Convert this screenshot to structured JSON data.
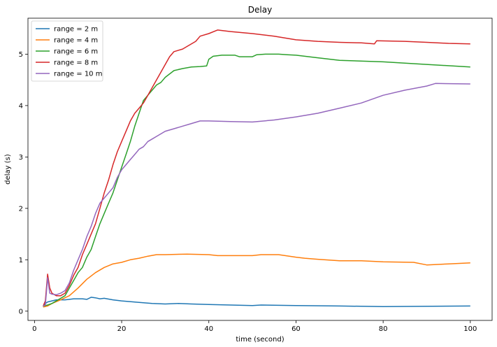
{
  "chart_data": {
    "type": "line",
    "title": "Delay",
    "xlabel": "time (second)",
    "ylabel": "delay (s)",
    "xlim": [
      -1.5,
      105
    ],
    "ylim": [
      -0.18,
      5.7
    ],
    "xticks": [
      0,
      20,
      40,
      60,
      80,
      100
    ],
    "yticks": [
      0,
      1,
      2,
      3,
      4,
      5
    ],
    "grid": false,
    "legend_position": "top-left",
    "series": [
      {
        "name": "range = 2 m",
        "color": "#1f77b4",
        "points": [
          [
            2,
            0.08
          ],
          [
            2.5,
            0.15
          ],
          [
            3,
            0.18
          ],
          [
            4,
            0.2
          ],
          [
            5,
            0.22
          ],
          [
            7,
            0.22
          ],
          [
            9,
            0.24
          ],
          [
            11,
            0.24
          ],
          [
            12,
            0.23
          ],
          [
            13,
            0.27
          ],
          [
            14,
            0.26
          ],
          [
            15,
            0.24
          ],
          [
            16,
            0.25
          ],
          [
            18,
            0.22
          ],
          [
            20,
            0.2
          ],
          [
            24,
            0.17
          ],
          [
            27,
            0.15
          ],
          [
            30,
            0.14
          ],
          [
            33,
            0.15
          ],
          [
            36,
            0.14
          ],
          [
            40,
            0.13
          ],
          [
            50,
            0.11
          ],
          [
            52,
            0.12
          ],
          [
            60,
            0.11
          ],
          [
            70,
            0.1
          ],
          [
            80,
            0.09
          ],
          [
            100,
            0.1
          ]
        ]
      },
      {
        "name": "range = 4 m",
        "color": "#ff7f0e",
        "points": [
          [
            2,
            0.08
          ],
          [
            3,
            0.1
          ],
          [
            4,
            0.15
          ],
          [
            6,
            0.22
          ],
          [
            8,
            0.3
          ],
          [
            10,
            0.45
          ],
          [
            12,
            0.62
          ],
          [
            14,
            0.75
          ],
          [
            16,
            0.85
          ],
          [
            18,
            0.92
          ],
          [
            20,
            0.95
          ],
          [
            22,
            1.0
          ],
          [
            24,
            1.03
          ],
          [
            26,
            1.07
          ],
          [
            28,
            1.1
          ],
          [
            30,
            1.1
          ],
          [
            35,
            1.11
          ],
          [
            40,
            1.1
          ],
          [
            42,
            1.08
          ],
          [
            47,
            1.08
          ],
          [
            50,
            1.08
          ],
          [
            52,
            1.1
          ],
          [
            56,
            1.1
          ],
          [
            60,
            1.05
          ],
          [
            62,
            1.03
          ],
          [
            65,
            1.01
          ],
          [
            70,
            0.98
          ],
          [
            75,
            0.98
          ],
          [
            80,
            0.96
          ],
          [
            87,
            0.95
          ],
          [
            90,
            0.9
          ],
          [
            95,
            0.92
          ],
          [
            100,
            0.94
          ]
        ]
      },
      {
        "name": "range = 6 m",
        "color": "#2ca02c",
        "points": [
          [
            2,
            0.1
          ],
          [
            3,
            0.12
          ],
          [
            4,
            0.15
          ],
          [
            5,
            0.2
          ],
          [
            6,
            0.25
          ],
          [
            7,
            0.3
          ],
          [
            8,
            0.45
          ],
          [
            9,
            0.6
          ],
          [
            10,
            0.75
          ],
          [
            11,
            0.85
          ],
          [
            12,
            1.05
          ],
          [
            13,
            1.2
          ],
          [
            14,
            1.45
          ],
          [
            15,
            1.7
          ],
          [
            16,
            1.9
          ],
          [
            17,
            2.1
          ],
          [
            18,
            2.3
          ],
          [
            19,
            2.55
          ],
          [
            20,
            2.8
          ],
          [
            21,
            3.05
          ],
          [
            22,
            3.3
          ],
          [
            23,
            3.6
          ],
          [
            24,
            3.85
          ],
          [
            25,
            4.1
          ],
          [
            26,
            4.2
          ],
          [
            27,
            4.3
          ],
          [
            28,
            4.4
          ],
          [
            29,
            4.45
          ],
          [
            30,
            4.55
          ],
          [
            32,
            4.68
          ],
          [
            34,
            4.72
          ],
          [
            36,
            4.75
          ],
          [
            38,
            4.76
          ],
          [
            39.5,
            4.77
          ],
          [
            40,
            4.9
          ],
          [
            41,
            4.96
          ],
          [
            43,
            4.98
          ],
          [
            46,
            4.98
          ],
          [
            47,
            4.95
          ],
          [
            50,
            4.95
          ],
          [
            51,
            4.99
          ],
          [
            53,
            5.0
          ],
          [
            56,
            5.0
          ],
          [
            58,
            4.99
          ],
          [
            60,
            4.98
          ],
          [
            65,
            4.93
          ],
          [
            70,
            4.88
          ],
          [
            80,
            4.85
          ],
          [
            90,
            4.8
          ],
          [
            100,
            4.75
          ]
        ]
      },
      {
        "name": "range = 8 m",
        "color": "#d62728",
        "points": [
          [
            2,
            0.1
          ],
          [
            2.5,
            0.2
          ],
          [
            3,
            0.72
          ],
          [
            3.5,
            0.45
          ],
          [
            4,
            0.35
          ],
          [
            5,
            0.3
          ],
          [
            6,
            0.3
          ],
          [
            7,
            0.35
          ],
          [
            8,
            0.5
          ],
          [
            9,
            0.7
          ],
          [
            10,
            0.85
          ],
          [
            11,
            1.1
          ],
          [
            12,
            1.3
          ],
          [
            13,
            1.5
          ],
          [
            14,
            1.7
          ],
          [
            15,
            2.0
          ],
          [
            16,
            2.3
          ],
          [
            17,
            2.55
          ],
          [
            18,
            2.85
          ],
          [
            19,
            3.1
          ],
          [
            20,
            3.3
          ],
          [
            21,
            3.5
          ],
          [
            22,
            3.7
          ],
          [
            23,
            3.85
          ],
          [
            24,
            3.95
          ],
          [
            25,
            4.05
          ],
          [
            26,
            4.2
          ],
          [
            27,
            4.35
          ],
          [
            28,
            4.5
          ],
          [
            29,
            4.65
          ],
          [
            30,
            4.8
          ],
          [
            31,
            4.95
          ],
          [
            32,
            5.05
          ],
          [
            34,
            5.1
          ],
          [
            35,
            5.15
          ],
          [
            37,
            5.25
          ],
          [
            38,
            5.35
          ],
          [
            40,
            5.4
          ],
          [
            42,
            5.47
          ],
          [
            45,
            5.44
          ],
          [
            50,
            5.4
          ],
          [
            55,
            5.35
          ],
          [
            60,
            5.28
          ],
          [
            65,
            5.25
          ],
          [
            70,
            5.23
          ],
          [
            75,
            5.22
          ],
          [
            78,
            5.2
          ],
          [
            78.5,
            5.26
          ],
          [
            85,
            5.25
          ],
          [
            90,
            5.23
          ],
          [
            95,
            5.21
          ],
          [
            100,
            5.2
          ]
        ]
      },
      {
        "name": "range = 10 m",
        "color": "#9467bd",
        "points": [
          [
            2,
            0.1
          ],
          [
            2.5,
            0.12
          ],
          [
            3,
            0.65
          ],
          [
            3.5,
            0.35
          ],
          [
            4,
            0.33
          ],
          [
            5,
            0.32
          ],
          [
            6,
            0.35
          ],
          [
            7,
            0.4
          ],
          [
            8,
            0.55
          ],
          [
            9,
            0.8
          ],
          [
            10,
            1.0
          ],
          [
            11,
            1.2
          ],
          [
            12,
            1.45
          ],
          [
            13,
            1.65
          ],
          [
            14,
            1.9
          ],
          [
            15,
            2.1
          ],
          [
            16,
            2.2
          ],
          [
            17,
            2.3
          ],
          [
            18,
            2.4
          ],
          [
            19,
            2.6
          ],
          [
            20,
            2.75
          ],
          [
            21,
            2.85
          ],
          [
            22,
            2.95
          ],
          [
            23,
            3.05
          ],
          [
            24,
            3.15
          ],
          [
            25,
            3.2
          ],
          [
            26,
            3.3
          ],
          [
            27,
            3.35
          ],
          [
            28,
            3.4
          ],
          [
            30,
            3.5
          ],
          [
            32,
            3.55
          ],
          [
            34,
            3.6
          ],
          [
            36,
            3.65
          ],
          [
            38,
            3.7
          ],
          [
            40,
            3.7
          ],
          [
            45,
            3.69
          ],
          [
            50,
            3.68
          ],
          [
            55,
            3.72
          ],
          [
            60,
            3.78
          ],
          [
            65,
            3.85
          ],
          [
            70,
            3.95
          ],
          [
            75,
            4.05
          ],
          [
            80,
            4.2
          ],
          [
            85,
            4.3
          ],
          [
            90,
            4.38
          ],
          [
            92,
            4.43
          ],
          [
            100,
            4.42
          ]
        ]
      }
    ]
  }
}
